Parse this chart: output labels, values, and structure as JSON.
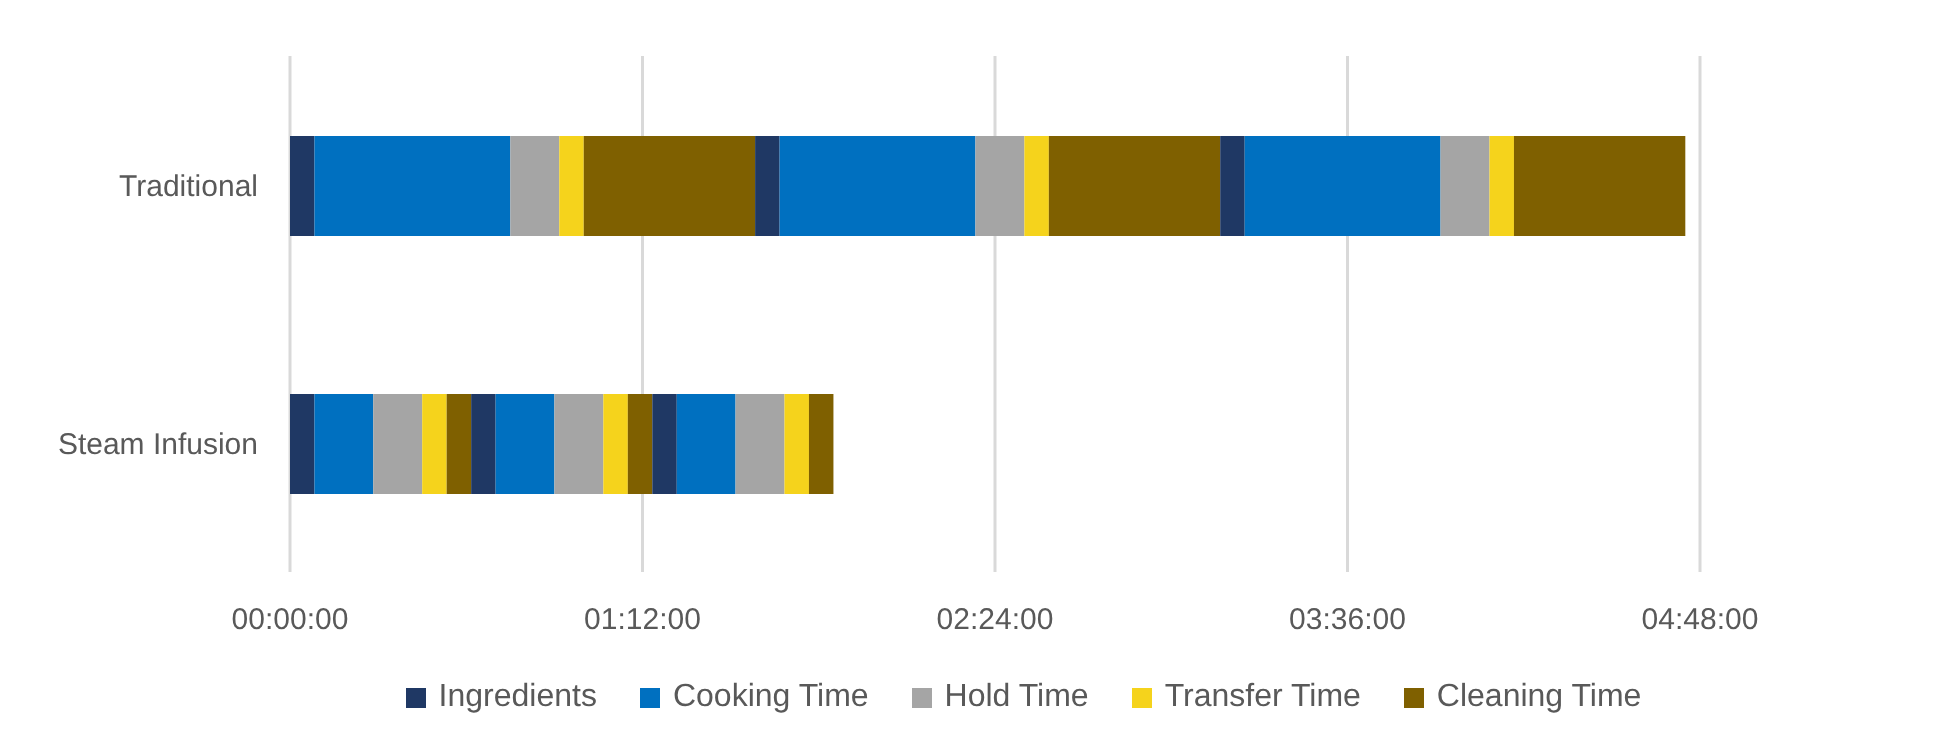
{
  "chart_data": {
    "type": "bar",
    "orientation": "horizontal",
    "stacked": true,
    "categories": [
      "Traditional",
      "Steam Infusion"
    ],
    "series": [
      {
        "name": "Ingredients",
        "color": "#1f3864",
        "values": [
          5,
          5
        ]
      },
      {
        "name": "Cooking Time",
        "color": "#0070c0",
        "values": [
          40,
          12
        ]
      },
      {
        "name": "Hold Time",
        "color": "#a5a5a5",
        "values": [
          10,
          10
        ]
      },
      {
        "name": "Transfer Time",
        "color": "#f5d31c",
        "values": [
          5,
          5
        ]
      },
      {
        "name": "Cleaning Time",
        "color": "#7f6000",
        "values": [
          35,
          5
        ]
      },
      {
        "color": "#1f3864",
        "values": [
          5,
          5
        ]
      },
      {
        "color": "#0070c0",
        "values": [
          40,
          12
        ]
      },
      {
        "color": "#a5a5a5",
        "values": [
          10,
          10
        ]
      },
      {
        "color": "#f5d31c",
        "values": [
          5,
          5
        ]
      },
      {
        "color": "#7f6000",
        "values": [
          35,
          5
        ]
      },
      {
        "color": "#1f3864",
        "values": [
          5,
          5
        ]
      },
      {
        "color": "#0070c0",
        "values": [
          40,
          12
        ]
      },
      {
        "color": "#a5a5a5",
        "values": [
          10,
          10
        ]
      },
      {
        "color": "#f5d31c",
        "values": [
          5,
          5
        ]
      },
      {
        "color": "#7f6000",
        "values": [
          35,
          5
        ]
      }
    ],
    "xlim": [
      0,
      288
    ],
    "xticks": [
      {
        "value": 0,
        "label": "00:00:00"
      },
      {
        "value": 72,
        "label": "01:12:00"
      },
      {
        "value": 144,
        "label": "02:24:00"
      },
      {
        "value": 216,
        "label": "03:36:00"
      },
      {
        "value": 288,
        "label": "04:48:00"
      }
    ],
    "grid": "x",
    "legend": "bottom"
  }
}
